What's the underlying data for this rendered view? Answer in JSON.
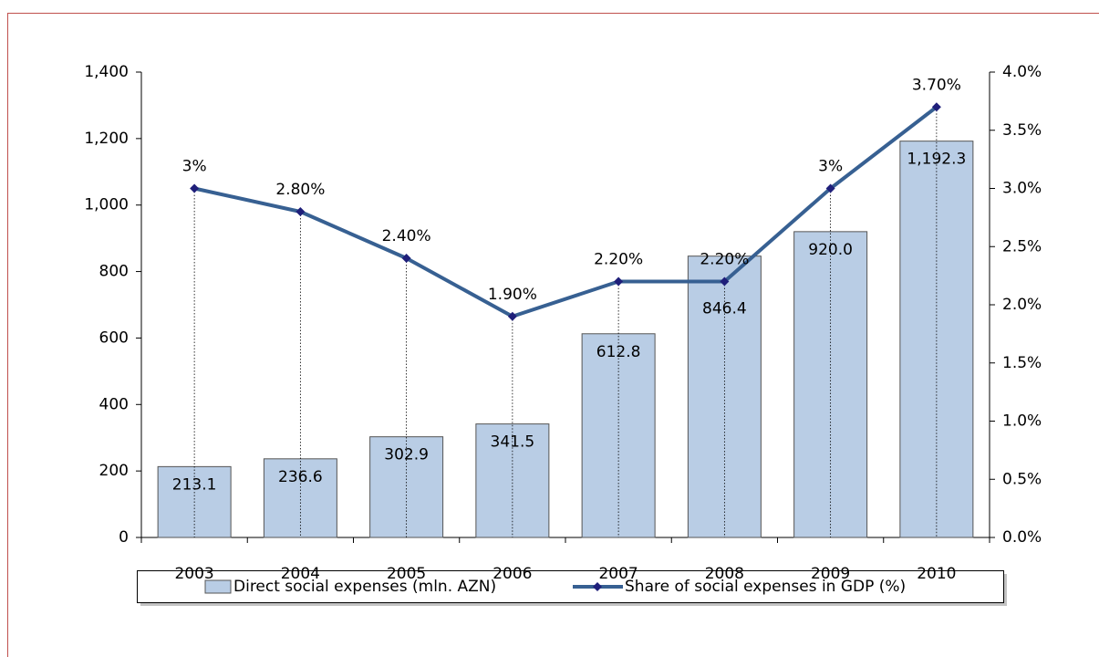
{
  "chart_data": {
    "type": "bar_line",
    "categories": [
      "2003",
      "2004",
      "2005",
      "2006",
      "2007",
      "2008",
      "2009",
      "2010"
    ],
    "series": [
      {
        "name": "Direct social expenses (mln. AZN)",
        "type": "bar",
        "color": "#b9cde5",
        "values": [
          213.1,
          236.6,
          302.9,
          341.5,
          612.8,
          846.4,
          920.0,
          1192.3
        ],
        "value_labels": [
          "213.1",
          "236.6",
          "302.9",
          "341.5",
          "612.8",
          "846.4",
          "920.0",
          "1,192.3"
        ]
      },
      {
        "name": "Share of social expenses in GDP (%)",
        "type": "line",
        "axis": "y2",
        "color": "#376092",
        "values": [
          3.0,
          2.8,
          2.4,
          1.9,
          2.2,
          2.2,
          3.0,
          3.7
        ],
        "value_labels": [
          "3%",
          "2.80%",
          "2.40%",
          "1.90%",
          "2.20%",
          "2.20%",
          "3%",
          "3.70%"
        ]
      }
    ],
    "ylim": [
      0,
      1400
    ],
    "yticks": [
      0,
      200,
      400,
      600,
      800,
      {
        "value": 1000,
        "label": "1,000"
      },
      {
        "value": 1200,
        "label": "1,200"
      },
      {
        "value": 1400,
        "label": "1,400"
      }
    ],
    "y2lim": [
      0,
      4.0
    ],
    "y2ticks": [
      {
        "value": 0,
        "label": "0.0%"
      },
      {
        "value": 0.5,
        "label": "0.5%"
      },
      {
        "value": 1.0,
        "label": "1.0%"
      },
      {
        "value": 1.5,
        "label": "1.5%"
      },
      {
        "value": 2.0,
        "label": "2.0%"
      },
      {
        "value": 2.5,
        "label": "2.5%"
      },
      {
        "value": 3.0,
        "label": "3.0%"
      },
      {
        "value": 3.5,
        "label": "3.5%"
      },
      {
        "value": 4.0,
        "label": "4.0%"
      }
    ],
    "legend": "bottom"
  }
}
